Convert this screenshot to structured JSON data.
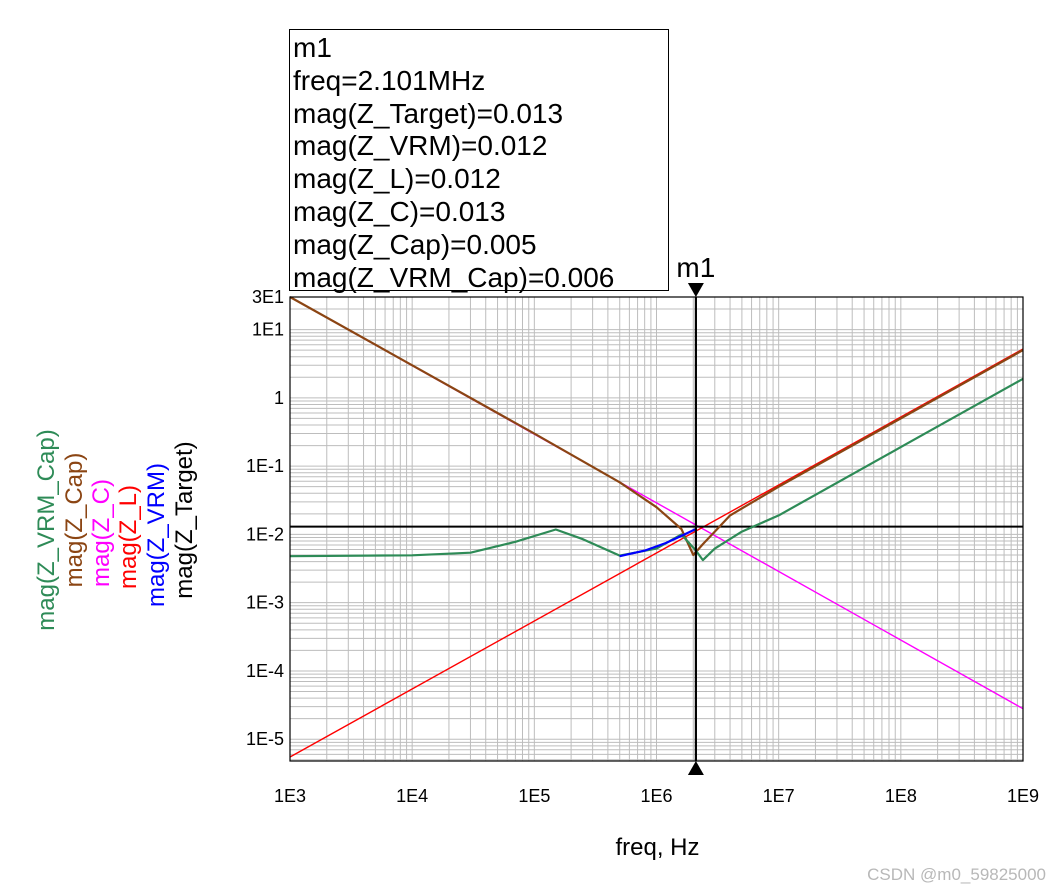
{
  "chart_data": {
    "type": "line",
    "xscale": "log",
    "yscale": "log",
    "xlim": [
      1000,
      1000000000
    ],
    "ylim": [
      4.8e-06,
      30
    ],
    "xlabel": "freq, Hz",
    "x_ticks": [
      "1E3",
      "1E4",
      "1E5",
      "1E6",
      "1E7",
      "1E8",
      "1E9"
    ],
    "y_ticks": [
      "3E1",
      "1E1",
      "1",
      "1E-1",
      "1E-2",
      "1E-3",
      "1E-4",
      "1E-5"
    ],
    "grid": true,
    "series": [
      {
        "name": "mag(Z_VRM_Cap)",
        "color": "#2e8b57",
        "points": [
          [
            1000,
            0.0048
          ],
          [
            10000,
            0.00495
          ],
          [
            30000,
            0.0054
          ],
          [
            70000,
            0.0078
          ],
          [
            150000,
            0.0118
          ],
          [
            250000,
            0.0085
          ],
          [
            500000,
            0.0049
          ],
          [
            1000000,
            0.0062
          ],
          [
            1600000,
            0.01
          ],
          [
            2100000,
            0.0058
          ],
          [
            2400000,
            0.0042
          ],
          [
            3000000,
            0.0062
          ],
          [
            5000000,
            0.011
          ],
          [
            10000000,
            0.019
          ],
          [
            100000000,
            0.19
          ],
          [
            1000000000,
            1.9
          ]
        ]
      },
      {
        "name": "mag(Z_Cap)",
        "color": "#8b4513",
        "points": [
          [
            1000,
            30
          ],
          [
            10000,
            3
          ],
          [
            100000,
            0.3
          ],
          [
            500000,
            0.058
          ],
          [
            1000000,
            0.025
          ],
          [
            1600000,
            0.012
          ],
          [
            2000000,
            0.005
          ],
          [
            2400000,
            0.0072
          ],
          [
            3000000,
            0.011
          ],
          [
            4000000,
            0.019
          ],
          [
            10000000,
            0.05
          ],
          [
            100000000,
            0.5
          ],
          [
            1000000000,
            5
          ]
        ]
      },
      {
        "name": "mag(Z_C)",
        "color": "#ff00ff",
        "points": [
          [
            1000,
            30
          ],
          [
            1000000000,
            2.8e-05
          ]
        ]
      },
      {
        "name": "mag(Z_L)",
        "color": "#ff0000",
        "points": [
          [
            1000,
            5.5e-06
          ],
          [
            1000000000,
            5.2
          ]
        ]
      },
      {
        "name": "mag(Z_VRM)",
        "color": "#0000ff",
        "points": [
          [
            500000,
            0.0048
          ],
          [
            800000,
            0.0058
          ],
          [
            1200000,
            0.0075
          ],
          [
            1600000,
            0.0095
          ],
          [
            2100000,
            0.012
          ]
        ]
      },
      {
        "name": "mag(Z_Target)",
        "color": "#000000",
        "points": [
          [
            1000,
            0.013
          ],
          [
            1000000000,
            0.013
          ]
        ]
      }
    ],
    "marker": {
      "label": "m1",
      "freq": 2101000,
      "lines": [
        "m1",
        "freq=2.101MHz",
        "mag(Z_Target)=0.013",
        "mag(Z_VRM)=0.012",
        "mag(Z_L)=0.012",
        "mag(Z_C)=0.013",
        "mag(Z_Cap)=0.005",
        "mag(Z_VRM_Cap)=0.006"
      ]
    }
  },
  "watermark": "CSDN @m0_59825000"
}
